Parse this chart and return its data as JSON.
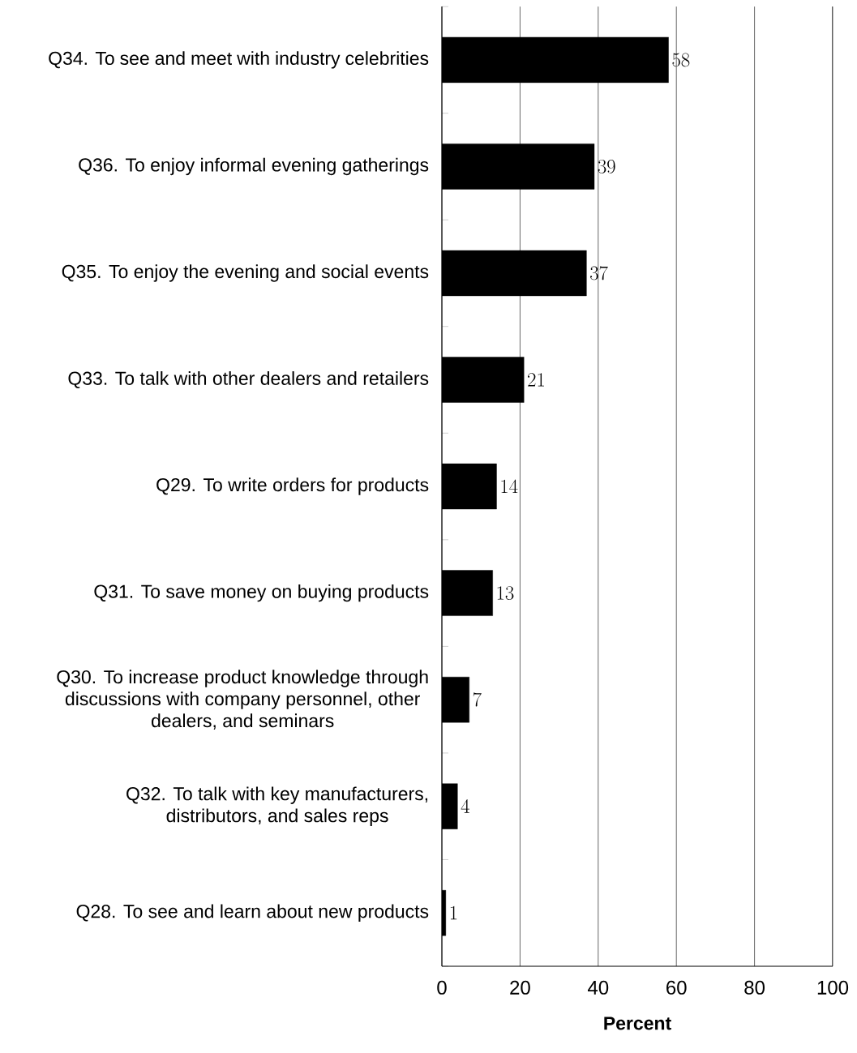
{
  "chart_data": {
    "type": "bar",
    "orientation": "horizontal",
    "xlabel": "**Percent**",
    "categories": [
      "Q34. To see and meet with industry celebrities",
      "Q36. To enjoy informal evening gatherings",
      "Q35. To enjoy the evening and social events",
      "Q33. To talk with other dealers and retailers",
      "Q29. To write orders for products",
      "Q31. To save money on buying products",
      "Q30. To increase product knowledge through discussions with company personnel, other dealers, and seminars",
      "Q32. To talk with key manufacturers, distributors, and sales reps",
      "Q28. To see and learn about new products"
    ],
    "values": [
      58,
      39,
      37,
      21,
      14,
      13,
      7,
      4,
      1
    ],
    "color": "#000000",
    "xlim": [
      0,
      100
    ],
    "xticks": [
      0,
      20,
      40,
      60,
      80,
      100
    ],
    "grid": "x",
    "data_labels": true
  }
}
